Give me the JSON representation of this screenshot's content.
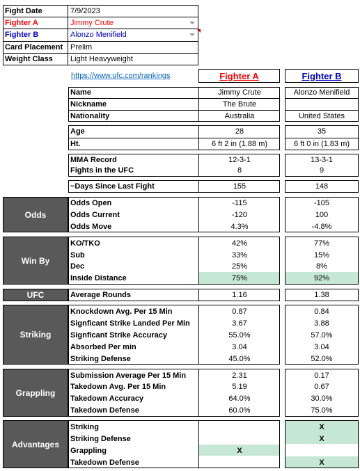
{
  "info": {
    "fight_date_label": "Fight Date",
    "fight_date": "7/9/2023",
    "fighter_a_label": "Fighter A",
    "fighter_a": "Jimmy Crute",
    "fighter_b_label": "Fighter B",
    "fighter_b": "Alonzo Menifield",
    "card_label": "Card Placement",
    "card": "Prelim",
    "weight_label": "Weight Class",
    "weight": "Light Heavyweight"
  },
  "header": {
    "link": "https://www.ufc.com/rankings",
    "col_a": "Fighter A",
    "col_b": "Fighter B"
  },
  "colors": {
    "fighter_a": "#ff0000",
    "fighter_b": "#0000cc",
    "section_bg": "#595959",
    "highlight": "#c6e7d3"
  },
  "profile": {
    "name_label": "Name",
    "name_a": "Jimmy Crute",
    "name_b": "Alonzo Menifield",
    "nick_label": "Nickname",
    "nick_a": "The Brute",
    "nick_b": "",
    "nat_label": "Nationality",
    "nat_a": "Australia",
    "nat_b": "United States"
  },
  "physical": {
    "age_label": "Age",
    "age_a": "28",
    "age_b": "35",
    "ht_label": "Ht.",
    "ht_a": "6 ft 2 in (1.88 m)",
    "ht_b": "6 ft 0 in (1.83 m)"
  },
  "record": {
    "mma_label": "MMA Record",
    "mma_a": "12-3-1",
    "mma_b": "13-3-1",
    "ufc_label": "Fights in the UFC",
    "ufc_a": "8",
    "ufc_b": "9"
  },
  "days": {
    "label": "~Days Since Last Fight",
    "a": "155",
    "b": "148"
  },
  "odds": {
    "title": "Odds",
    "rows": [
      {
        "label": "Odds Open",
        "a": "-115",
        "b": "-105"
      },
      {
        "label": "Odds Current",
        "a": "-120",
        "b": "100"
      },
      {
        "label": "Odds Move",
        "a": "4.3%",
        "b": "-4.8%"
      }
    ]
  },
  "winby": {
    "title": "Win By",
    "rows": [
      {
        "label": "KO/TKO",
        "a": "42%",
        "b": "77%"
      },
      {
        "label": "Sub",
        "a": "33%",
        "b": "15%"
      },
      {
        "label": "Dec",
        "a": "25%",
        "b": "8%"
      },
      {
        "label": "Inside Distance",
        "a": "75%",
        "b": "92%"
      }
    ]
  },
  "ufc": {
    "title": "UFC",
    "label": "Average Rounds",
    "a": "1.16",
    "b": "1.38"
  },
  "striking": {
    "title": "Striking",
    "rows": [
      {
        "label": "Knockdown Avg. Per 15 Min",
        "a": "0.87",
        "b": "0.84"
      },
      {
        "label": "Signficant Strike Landed Per Min",
        "a": "3.67",
        "b": "3.88"
      },
      {
        "label": "Signficant Strike Accuracy",
        "a": "55.0%",
        "b": "57.0%"
      },
      {
        "label": "Absorbed Per min",
        "a": "3.04",
        "b": "3.04"
      },
      {
        "label": "Striking Defense",
        "a": "45.0%",
        "b": "52.0%"
      }
    ]
  },
  "grappling": {
    "title": "Grappling",
    "rows": [
      {
        "label": "Submission Average  Per 15 Min",
        "a": "2.31",
        "b": "0.17"
      },
      {
        "label": "Takedown Avg. Per 15 Min",
        "a": "5.19",
        "b": "0.67"
      },
      {
        "label": "Takedown Accuracy",
        "a": "64.0%",
        "b": "30.0%"
      },
      {
        "label": "Takedown Defense",
        "a": "60.0%",
        "b": "75.0%"
      }
    ]
  },
  "advantages": {
    "title": "Advantages",
    "rows": [
      {
        "label": "Striking",
        "a": "",
        "b": "X"
      },
      {
        "label": "Striking Defense",
        "a": "",
        "b": "X"
      },
      {
        "label": "Grappling",
        "a": "X",
        "b": ""
      },
      {
        "label": "Takedown Defense",
        "a": "",
        "b": "X"
      }
    ]
  }
}
